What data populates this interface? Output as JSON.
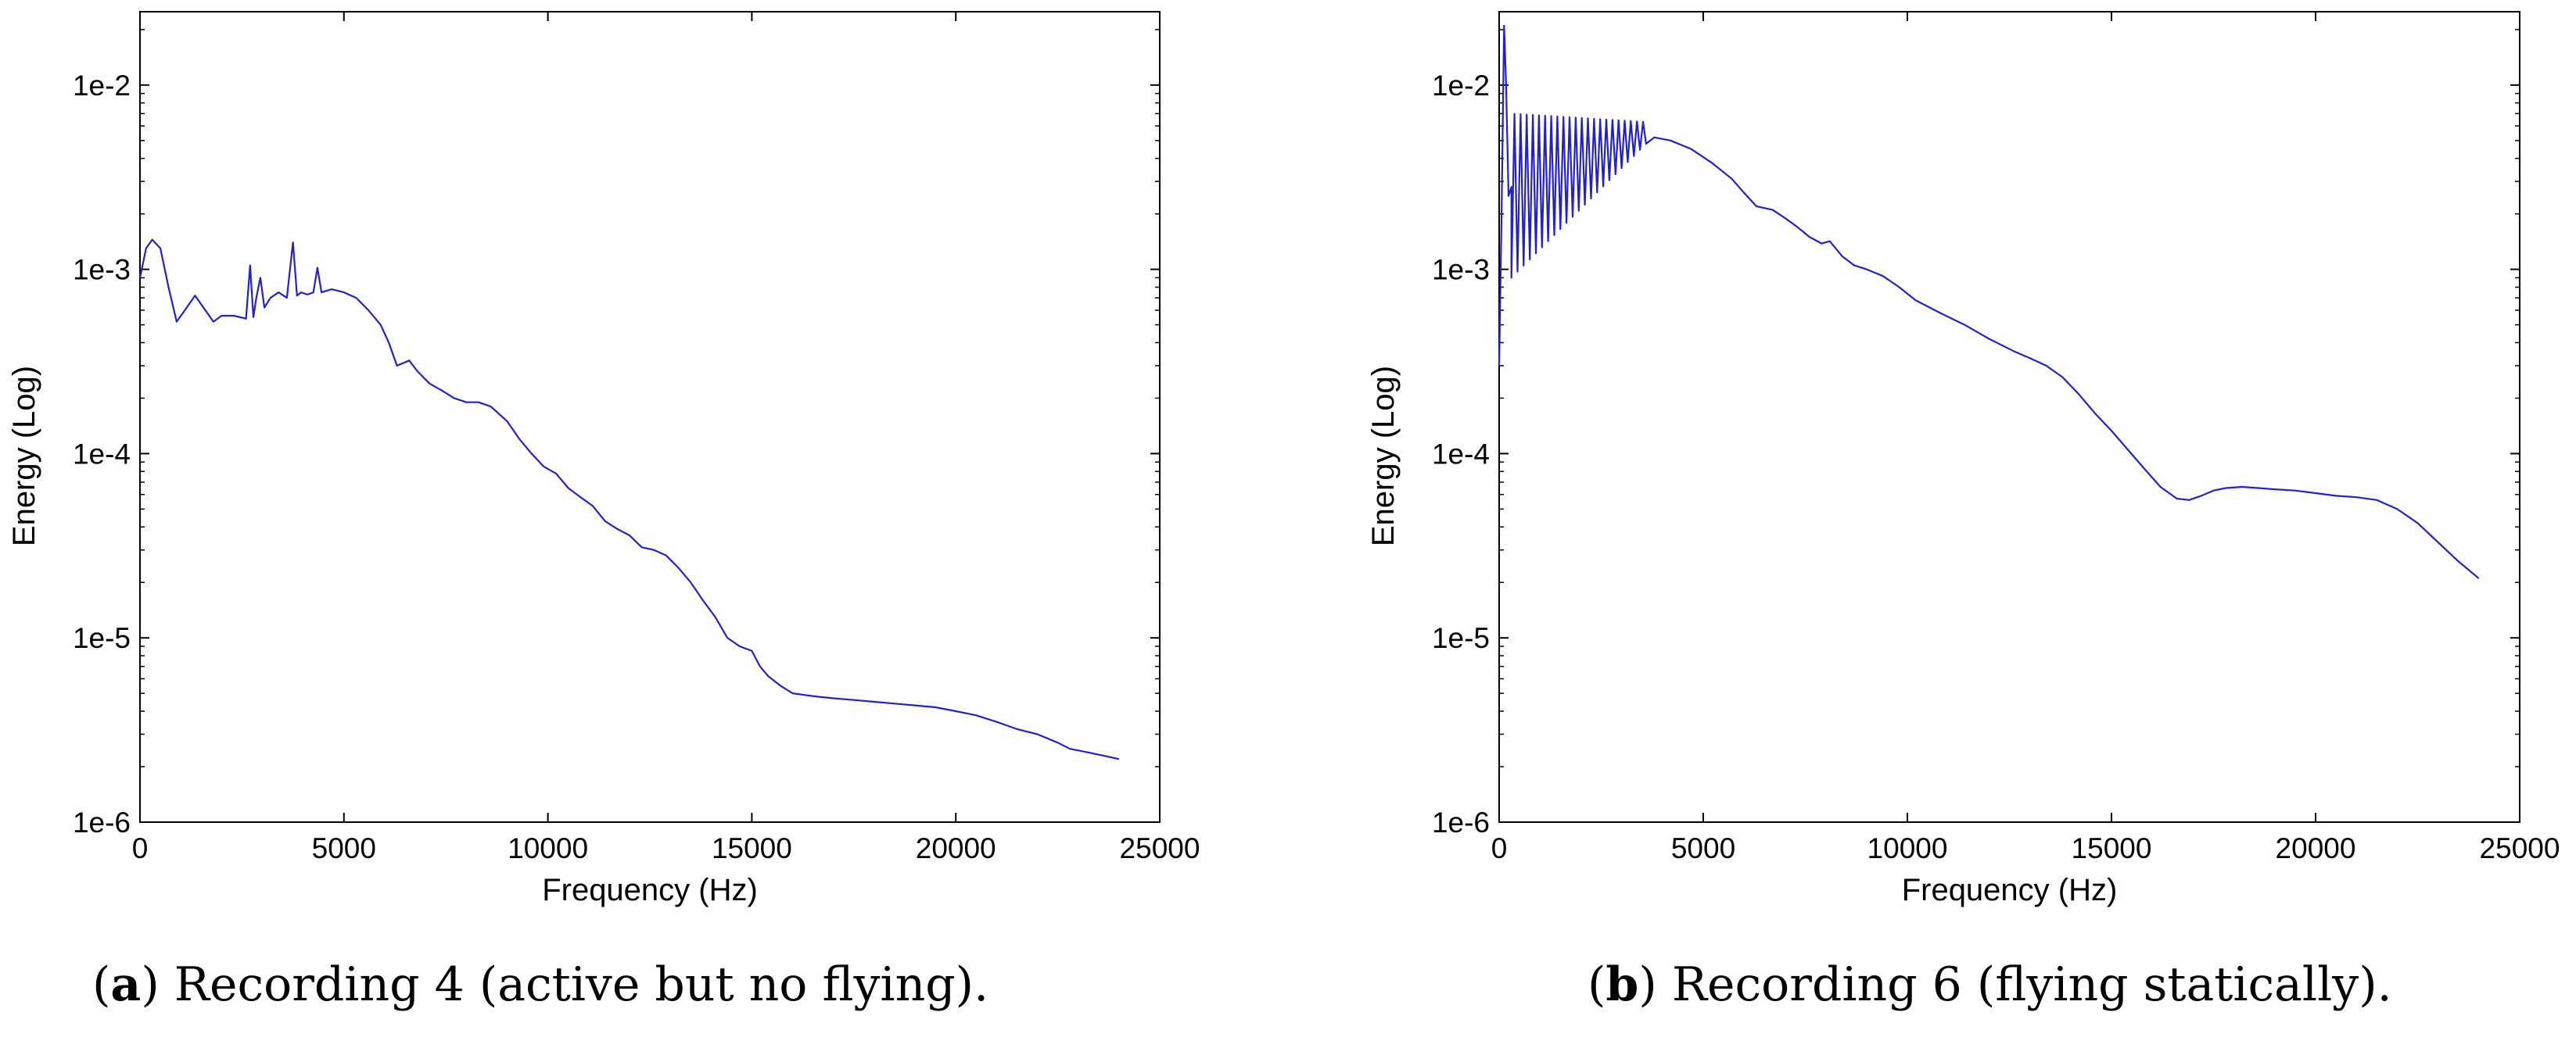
{
  "chart_data": [
    {
      "id": "a",
      "type": "line",
      "xscale": "linear",
      "yscale": "log",
      "xlabel": "Frequency (Hz)",
      "ylabel": "Energy (Log)",
      "xlim": [
        0,
        25000
      ],
      "ylim": [
        1e-06,
        0.025
      ],
      "xticks": [
        0,
        5000,
        10000,
        15000,
        20000,
        25000
      ],
      "xtick_labels": [
        "0",
        "5000",
        "10000",
        "15000",
        "20000",
        "25000"
      ],
      "yticks": [
        1e-06,
        1e-05,
        0.0001,
        0.001,
        0.01
      ],
      "ytick_labels": [
        "1e-6",
        "1e-5",
        "1e-4",
        "1e-3",
        "1e-2"
      ],
      "line_color": "#2222cc",
      "series": [
        {
          "name": "Recording 4",
          "x": [
            0,
            150,
            300,
            500,
            700,
            900,
            1100,
            1350,
            1600,
            1800,
            2000,
            2300,
            2600,
            2700,
            2780,
            2850,
            2950,
            3050,
            3200,
            3400,
            3600,
            3750,
            3850,
            3950,
            4100,
            4250,
            4350,
            4450,
            4700,
            5000,
            5300,
            5600,
            5900,
            6100,
            6300,
            6600,
            6800,
            7100,
            7400,
            7700,
            8000,
            8300,
            8600,
            9000,
            9300,
            9600,
            9900,
            10200,
            10500,
            10800,
            11100,
            11400,
            11700,
            12000,
            12300,
            12600,
            12900,
            13200,
            13500,
            13800,
            14100,
            14400,
            14700,
            15000,
            15200,
            15400,
            15700,
            16000,
            16300,
            16600,
            17000,
            17500,
            18000,
            18500,
            19000,
            19500,
            20000,
            20500,
            21000,
            21500,
            22000,
            22500,
            22800,
            23200,
            23600,
            24000
          ],
          "y": [
            0.0009,
            0.0013,
            0.00145,
            0.0013,
            0.0008,
            0.00052,
            0.0006,
            0.00072,
            0.0006,
            0.00052,
            0.00056,
            0.00056,
            0.00054,
            0.00105,
            0.00055,
            0.0007,
            0.0009,
            0.00062,
            0.0007,
            0.00075,
            0.0007,
            0.0014,
            0.00072,
            0.00075,
            0.00073,
            0.00075,
            0.00102,
            0.00075,
            0.00078,
            0.00075,
            0.0007,
            0.0006,
            0.0005,
            0.0004,
            0.0003,
            0.00032,
            0.00028,
            0.00024,
            0.00022,
            0.0002,
            0.00019,
            0.00019,
            0.00018,
            0.00015,
            0.00012,
            0.0001,
            8.5e-05,
            7.8e-05,
            6.5e-05,
            5.8e-05,
            5.2e-05,
            4.3e-05,
            3.9e-05,
            3.6e-05,
            3.1e-05,
            3e-05,
            2.8e-05,
            2.4e-05,
            2e-05,
            1.6e-05,
            1.3e-05,
            1e-05,
            9e-06,
            8.5e-06,
            7e-06,
            6.2e-06,
            5.5e-06,
            5e-06,
            4.9e-06,
            4.8e-06,
            4.7e-06,
            4.6e-06,
            4.5e-06,
            4.4e-06,
            4.3e-06,
            4.2e-06,
            4e-06,
            3.8e-06,
            3.5e-06,
            3.2e-06,
            3e-06,
            2.7e-06,
            2.5e-06,
            2.4e-06,
            2.3e-06,
            2.2e-06
          ]
        }
      ]
    },
    {
      "id": "b",
      "type": "line",
      "xscale": "linear",
      "yscale": "log",
      "xlabel": "Frequency (Hz)",
      "ylabel": "Energy (Log)",
      "xlim": [
        0,
        25000
      ],
      "ylim": [
        1e-06,
        0.025
      ],
      "xticks": [
        0,
        5000,
        10000,
        15000,
        20000,
        25000
      ],
      "xtick_labels": [
        "0",
        "5000",
        "10000",
        "15000",
        "20000",
        "25000"
      ],
      "yticks": [
        1e-06,
        1e-05,
        0.0001,
        0.001,
        0.01
      ],
      "ytick_labels": [
        "1e-6",
        "1e-5",
        "1e-4",
        "1e-3",
        "1e-2"
      ],
      "line_color": "#2222cc",
      "series": [
        {
          "name": "Recording 6",
          "x": [
            0,
            60,
            120,
            170,
            230,
            300,
            3000,
            3400,
            3800,
            4200,
            4700,
            5200,
            5700,
            6000,
            6300,
            6700,
            7000,
            7300,
            7600,
            7900,
            8100,
            8400,
            8700,
            9000,
            9400,
            9800,
            10200,
            10800,
            11400,
            12000,
            12600,
            13000,
            13400,
            13800,
            14200,
            14600,
            15000,
            15400,
            15800,
            16200,
            16600,
            16900,
            17200,
            17500,
            17800,
            18200,
            18600,
            19000,
            19500,
            20000,
            20500,
            21000,
            21500,
            22000,
            22500,
            23000,
            23500,
            24000
          ],
          "y": [
            0.0003,
            0.002,
            0.021,
            0.01,
            0.0025,
            0.0028,
            0.0055,
            0.0056,
            0.0052,
            0.005,
            0.0045,
            0.0038,
            0.0031,
            0.0026,
            0.0022,
            0.0021,
            0.0019,
            0.0017,
            0.0015,
            0.00138,
            0.00142,
            0.00118,
            0.00105,
            0.001,
            0.00092,
            0.0008,
            0.00068,
            0.00058,
            0.0005,
            0.00042,
            0.00036,
            0.00033,
            0.0003,
            0.00026,
            0.00021,
            0.000165,
            0.000133,
            0.000105,
            8.3e-05,
            6.6e-05,
            5.7e-05,
            5.6e-05,
            5.9e-05,
            6.3e-05,
            6.5e-05,
            6.6e-05,
            6.5e-05,
            6.4e-05,
            6.3e-05,
            6.1e-05,
            5.9e-05,
            5.8e-05,
            5.6e-05,
            5e-05,
            4.2e-05,
            3.3e-05,
            2.6e-05,
            2.1e-05
          ]
        }
      ],
      "oscillation": {
        "x_start": 300,
        "x_end": 3600,
        "period_hz": 150,
        "low_start": 0.0009,
        "low_end": 0.0048,
        "high_start": 0.007,
        "high_end": 0.0063
      }
    }
  ],
  "captions": {
    "a": {
      "letter": "a",
      "text": " Recording 4 (active but no flying)."
    },
    "b": {
      "letter": "b",
      "text": " Recording 6 (flying statically)."
    }
  }
}
